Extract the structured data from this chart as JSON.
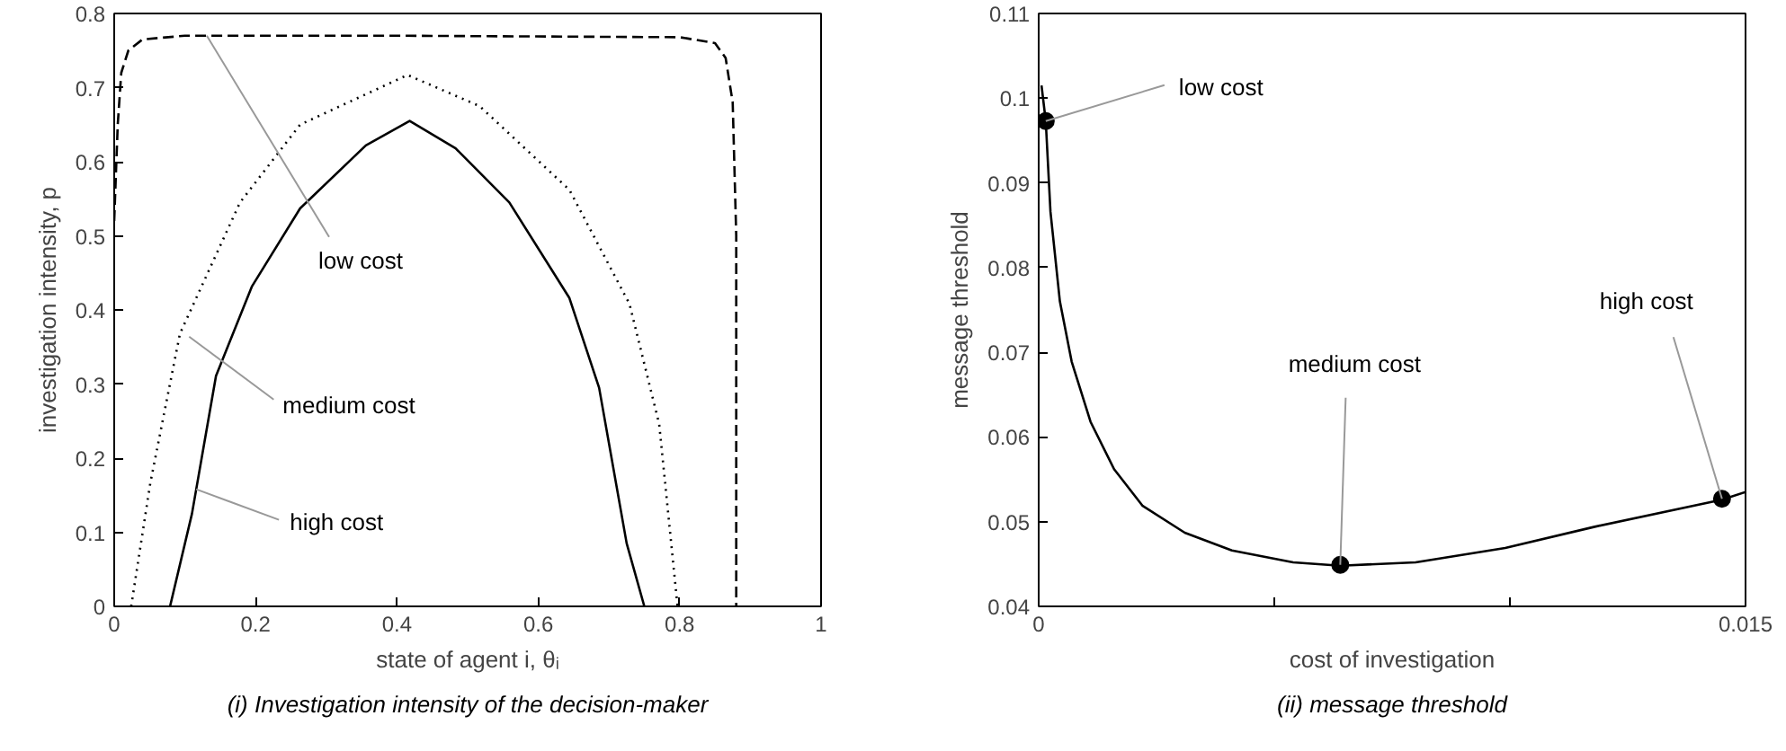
{
  "chart_data": [
    {
      "type": "line",
      "title": "(i) Investigation intensity of the decision-maker",
      "xlabel": "state of agent i, θᵢ",
      "ylabel": "investigation intensity, p",
      "xlim": [
        0,
        1
      ],
      "ylim": [
        0,
        0.8
      ],
      "xticks": [
        0,
        0.2,
        0.4,
        0.6,
        0.8,
        1
      ],
      "yticks": [
        0,
        0.1,
        0.2,
        0.3,
        0.4,
        0.5,
        0.6,
        0.7,
        0.8
      ],
      "grid": false,
      "marker": "none",
      "series": [
        {
          "color": "#000000",
          "line_style": "dashed",
          "x": [
            0,
            0.005,
            0.01,
            0.02,
            0.04,
            0.1,
            0.4,
            0.8,
            0.85,
            0.865,
            0.875,
            0.88,
            0.88
          ],
          "values": [
            0.52,
            0.65,
            0.72,
            0.75,
            0.765,
            0.77,
            0.77,
            0.768,
            0.76,
            0.74,
            0.68,
            0.5,
            0
          ]
        },
        {
          "color": "#000000",
          "line_style": "dotted",
          "x": [
            0.024,
            0.051,
            0.093,
            0.178,
            0.263,
            0.415,
            0.517,
            0.644,
            0.729,
            0.771,
            0.797
          ],
          "values": [
            0,
            0.166,
            0.368,
            0.545,
            0.65,
            0.717,
            0.675,
            0.562,
            0.408,
            0.246,
            0
          ]
        },
        {
          "color": "#000000",
          "line_style": "solid",
          "x": [
            0.079,
            0.11,
            0.144,
            0.195,
            0.263,
            0.356,
            0.418,
            0.483,
            0.559,
            0.644,
            0.686,
            0.725,
            0.75
          ],
          "values": [
            0,
            0.125,
            0.311,
            0.432,
            0.537,
            0.622,
            0.655,
            0.618,
            0.545,
            0.416,
            0.295,
            0.085,
            0
          ]
        }
      ],
      "annotations": [
        {
          "text": "low cost",
          "x": 0.131,
          "y": 0.77
        },
        {
          "text": "medium cost",
          "x": 0.106,
          "y": 0.364
        },
        {
          "text": "high cost",
          "x": 0.116,
          "y": 0.158
        }
      ]
    },
    {
      "type": "line",
      "title": "(ii) message threshold",
      "xlabel": "cost of investigation",
      "ylabel": "message threshold",
      "xlim": [
        0,
        0.015
      ],
      "ylim": [
        0.04,
        0.11
      ],
      "xticks": [
        0,
        {
          "value": 0.005,
          "label": null
        },
        {
          "value": 0.01,
          "label": null
        },
        0.015
      ],
      "yticks": [
        0.04,
        0.05,
        0.06,
        0.07,
        0.08,
        0.09,
        0.1,
        0.11
      ],
      "grid": false,
      "series": [
        {
          "color": "#000000",
          "line_style": "solid",
          "marker": "none",
          "x": [
            6e-05,
            0.00015,
            0.00025,
            0.00045,
            0.0007,
            0.0011,
            0.0016,
            0.0022,
            0.0031,
            0.0041,
            0.0054,
            0.0064,
            0.008,
            0.0099,
            0.0118,
            0.0145,
            0.015
          ],
          "values": [
            0.1015,
            0.0973,
            0.0866,
            0.076,
            0.0689,
            0.0618,
            0.0562,
            0.0519,
            0.0487,
            0.0466,
            0.0452,
            0.0448,
            0.0452,
            0.0469,
            0.0494,
            0.0526,
            0.0535
          ]
        },
        {
          "type": "scatter",
          "color": "#000000",
          "marker": "circle",
          "x": [
            0.00015,
            0.0064,
            0.0145
          ],
          "values": [
            0.0973,
            0.0449,
            0.0527
          ]
        }
      ],
      "annotations": [
        {
          "text": "low cost",
          "x": 0.00015,
          "y": 0.0973
        },
        {
          "text": "medium cost",
          "x": 0.0064,
          "y": 0.0449
        },
        {
          "text": "high cost",
          "x": 0.0145,
          "y": 0.0527
        }
      ]
    }
  ]
}
